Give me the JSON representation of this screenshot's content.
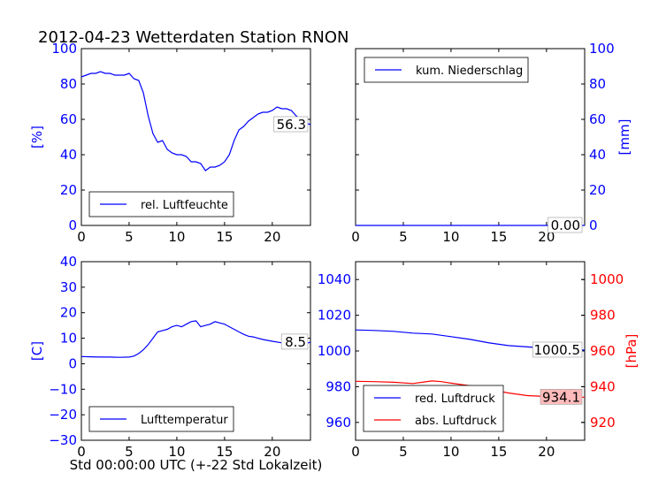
{
  "page": {
    "title": "2012-04-23 Wetterdaten Station RNON"
  },
  "colors": {
    "blue": "#0000ff",
    "red": "#ff0000",
    "black": "#000000"
  },
  "chart_data": [
    {
      "id": "humidity",
      "type": "line",
      "xlim": [
        0,
        24
      ],
      "ylim": [
        0,
        100
      ],
      "xticks": [
        "0",
        "5",
        "10",
        "15",
        "20"
      ],
      "yticks": [
        "0",
        "20",
        "40",
        "60",
        "80",
        "100"
      ],
      "ylabel": "[%]",
      "axis_side": "left",
      "axis_color": "#0000ff",
      "legend_placement": "lower-left",
      "series": [
        {
          "name": "rel. Luftfeuchte",
          "color": "#0000ff",
          "x": [
            0,
            0.5,
            1,
            1.5,
            2,
            2.5,
            3,
            3.5,
            4,
            4.5,
            5,
            5.5,
            6,
            6.5,
            7,
            7.5,
            8,
            8.5,
            9,
            9.5,
            10,
            10.5,
            11,
            11.5,
            12,
            12.5,
            13,
            13.5,
            14,
            14.5,
            15,
            15.5,
            16,
            16.5,
            17,
            17.5,
            18,
            18.5,
            19,
            19.5,
            20,
            20.5,
            21,
            21.5,
            22,
            22.5,
            23,
            23.5,
            24
          ],
          "y": [
            84,
            85,
            86,
            86,
            87,
            86,
            86,
            85,
            85,
            85,
            86,
            83,
            82,
            75,
            62,
            52,
            47,
            48,
            43,
            41,
            40,
            40,
            39,
            36,
            36,
            35,
            31,
            33,
            33,
            34,
            36,
            40,
            48,
            54,
            56,
            59,
            61,
            63,
            64,
            64,
            65,
            67,
            66,
            66,
            65,
            62,
            60,
            58,
            57
          ]
        }
      ],
      "end_label": "56.3"
    },
    {
      "id": "precipitation",
      "type": "line",
      "xlim": [
        0,
        24
      ],
      "ylim": [
        0,
        100
      ],
      "xticks": [
        "0",
        "5",
        "10",
        "15",
        "20"
      ],
      "yticks": [
        "0",
        "20",
        "40",
        "60",
        "80",
        "100"
      ],
      "ylabel": "[mm]",
      "axis_side": "right",
      "axis_color": "#0000ff",
      "legend_placement": "upper-left",
      "series": [
        {
          "name": "kum. Niederschlag",
          "color": "#0000ff",
          "x": [
            0,
            24
          ],
          "y": [
            0,
            0
          ]
        }
      ],
      "end_label": "0.00"
    },
    {
      "id": "temperature",
      "type": "line",
      "xlim": [
        0,
        24
      ],
      "ylim": [
        -30,
        40
      ],
      "xticks": [
        "0",
        "5",
        "10",
        "15",
        "20"
      ],
      "yticks": [
        "−30",
        "−20",
        "−10",
        "0",
        "10",
        "20",
        "30",
        "40"
      ],
      "ylabel": "[C]",
      "xlabel": "Std 00:00:00 UTC (+-22 Std Lokalzeit)",
      "axis_side": "left",
      "axis_color": "#0000ff",
      "legend_placement": "lower-left",
      "series": [
        {
          "name": "Lufttemperatur",
          "color": "#0000ff",
          "x": [
            0,
            1,
            2,
            3,
            4,
            5,
            5.5,
            6,
            6.5,
            7,
            7.5,
            8,
            8.5,
            9,
            9.5,
            10,
            10.5,
            11,
            11.5,
            12,
            12.5,
            13,
            13.5,
            14,
            14.5,
            15,
            15.5,
            16,
            16.5,
            17,
            17.5,
            18,
            19,
            20,
            21,
            22,
            22.5,
            23,
            23.5,
            24
          ],
          "y": [
            2.8,
            2.7,
            2.6,
            2.6,
            2.5,
            2.6,
            3,
            4,
            5.5,
            7.5,
            10,
            12.5,
            13,
            13.5,
            14.5,
            15,
            14.5,
            15.5,
            16.5,
            16.8,
            14.5,
            15,
            15.5,
            16.5,
            16,
            15.5,
            14.5,
            13.5,
            12.5,
            11.5,
            10.8,
            10.5,
            9.5,
            8.8,
            8.2,
            7.5,
            7.2,
            7.3,
            7.8,
            8.5
          ]
        }
      ],
      "end_label": "8.5"
    },
    {
      "id": "pressure",
      "type": "line",
      "xlim": [
        0,
        24
      ],
      "ylim": [
        950,
        1050
      ],
      "ylim_right": [
        910,
        1010
      ],
      "xticks": [
        "0",
        "5",
        "10",
        "15",
        "20"
      ],
      "yticks": [
        "960",
        "980",
        "1000",
        "1020",
        "1040"
      ],
      "yticks_right": [
        "920",
        "940",
        "960",
        "980",
        "1000"
      ],
      "ylabel_right": "[hPa]",
      "axis_color": "#0000ff",
      "axis_color_right": "#ff0000",
      "legend_placement": "lower-left",
      "series": [
        {
          "name": "red. Luftdruck",
          "color": "#0000ff",
          "axis": "left",
          "x": [
            0,
            2,
            4,
            6,
            8,
            10,
            12,
            14,
            16,
            18,
            20,
            21,
            22,
            23,
            24
          ],
          "y": [
            1011.8,
            1011.5,
            1011,
            1010,
            1009.5,
            1008,
            1006.5,
            1004.5,
            1003,
            1002.3,
            1001.5,
            1001.2,
            1001.0,
            1000.8,
            1000.5
          ]
        },
        {
          "name": "abs. Luftdruck",
          "color": "#ff0000",
          "axis": "right",
          "x": [
            0,
            2,
            4,
            6,
            7,
            8,
            9,
            10,
            12,
            14,
            16,
            18,
            20,
            22,
            24
          ],
          "y": [
            943,
            942.8,
            942.5,
            941.8,
            942.5,
            943.2,
            942.8,
            942,
            940.5,
            938.5,
            936.5,
            935,
            934.5,
            934.2,
            934.1
          ]
        }
      ],
      "end_labels": [
        "1000.5",
        "934.1"
      ]
    }
  ]
}
